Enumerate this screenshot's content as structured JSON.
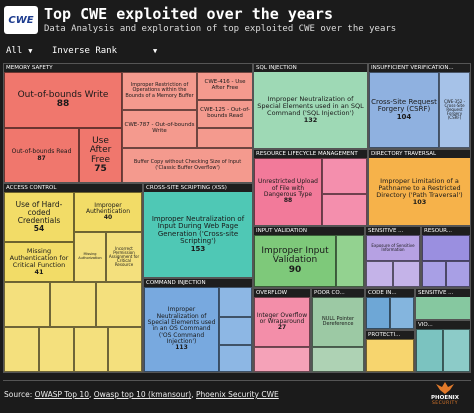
{
  "header": {
    "logo_text": "CWE",
    "title": "Top CWE exploited over the years",
    "subtitle": "Data Analysis and exploration of top exploited CWE over the years"
  },
  "filters": {
    "year": "All",
    "rank": "Inverse Rank"
  },
  "sections": {
    "memory_safety": "MEMORY SAFETY",
    "sql_injection": "SQL INJECTION",
    "insufficient_verification": "INSUFFICIENT VERIFICATION...",
    "resource_lifecycle": "RESOURCE LIFECYCLE MANAGEMENT",
    "directory_traversal": "DIRECTORY TRAVERSAL",
    "access_control": "ACCESS CONTROL",
    "xss": "CROSS-SITE SCRIPTING (XSS)",
    "input_validation": "INPUT VALIDATION",
    "sensitive": "SENSITIVE ...",
    "resource": "RESOUR...",
    "command_injection": "COMMAND INJECTION",
    "overflow": "OVERFLOW",
    "poor_code": "POOR CO...",
    "code_in": "CODE IN...",
    "sensitive2": "SENSITIVE ...",
    "protecti": "PROTECTI...",
    "vio": "VIO..."
  },
  "tiles": {
    "oob_write": {
      "label": "Out-of-bounds Write",
      "value": "88"
    },
    "oob_read": {
      "label": "Out-of-bounds Read",
      "value": "87"
    },
    "uaf": {
      "label": "Use After Free",
      "value": "75"
    },
    "improper_restriction": {
      "label": "Improper Restriction of Operations within the Bounds of a Memory Buffer",
      "value": ""
    },
    "cwe416": {
      "label": "CWE-416 - Use After Free",
      "value": ""
    },
    "cwe787": {
      "label": "CWE-787 - Out-of-bounds Write",
      "value": ""
    },
    "cwe125": {
      "label": "CWE-125 - Out-of-bounds Read",
      "value": ""
    },
    "buffer_copy": {
      "label": "Buffer Copy without Checking Size of Input ('Classic Buffer Overflow')",
      "value": ""
    },
    "sqli": {
      "label": "Improper Neutralization of Special Elements used in an SQL Command ('SQL Injection')",
      "value": "132"
    },
    "csrf": {
      "label": "Cross-Site Request Forgery (CSRF)",
      "value": "104"
    },
    "csrf_small": {
      "label": "CWE-352 - Cross-Site Request Forgery (CSRF)",
      "value": ""
    },
    "unrestricted_upload": {
      "label": "Unrestricted Upload of File with Dangerous Type",
      "value": "88"
    },
    "path_traversal": {
      "label": "Improper Limitation of a Pathname to a Restricted Directory ('Path Traversal')",
      "value": "103"
    },
    "hardcoded": {
      "label": "Use of Hard-coded Credentials",
      "value": "54"
    },
    "improper_auth": {
      "label": "Improper Authentication",
      "value": "40"
    },
    "missing_auth": {
      "label": "Missing Authentication for Critical Function",
      "value": "41"
    },
    "missing_authz": {
      "label": "Missing Authorization",
      "value": ""
    },
    "incorrect_perm": {
      "label": "Incorrect Permission Assignment for Critical Resource",
      "value": ""
    },
    "xss": {
      "label": "Improper Neutralization of Input During Web Page Generation ('Cross-site Scripting')",
      "value": "153"
    },
    "input_validation": {
      "label": "Improper Input Validation",
      "value": "90"
    },
    "cmd_injection": {
      "label": "Improper Neutralization of Special Elements used in an OS Command ('OS Command Injection')",
      "value": "113"
    },
    "int_overflow": {
      "label": "Integer Overflow or Wraparound",
      "value": "27"
    },
    "null_deref": {
      "label": "NULL Pointer Dereference",
      "value": ""
    },
    "exposure": {
      "label": "Exposure of Sensitive Information",
      "value": ""
    }
  },
  "colors": {
    "memory": "#f0776d",
    "memory_light": "#f49a8e",
    "sql": "#9ed9b5",
    "insufficient": "#8fb1e0",
    "resource_lc": "#f27a9a",
    "directory": "#f6b24a",
    "access": "#f2dc67",
    "xss": "#4fc8b5",
    "input": "#7ec97a",
    "sensitive": "#b6a1e3",
    "command": "#78a9df",
    "overflow": "#f38ea9",
    "poor": "#9cc9a4",
    "codein": "#6ea7d6",
    "protect": "#f7d56e",
    "vio": "#7bc3c0"
  },
  "footer": {
    "source_prefix": "Source: ",
    "src1": "OWASP Top 10",
    "src2": "Owasp top 10 (kmansour)",
    "src3": "Phoenix Security CWE",
    "brand1": "PHOENIX",
    "brand2": "SECURITY"
  }
}
